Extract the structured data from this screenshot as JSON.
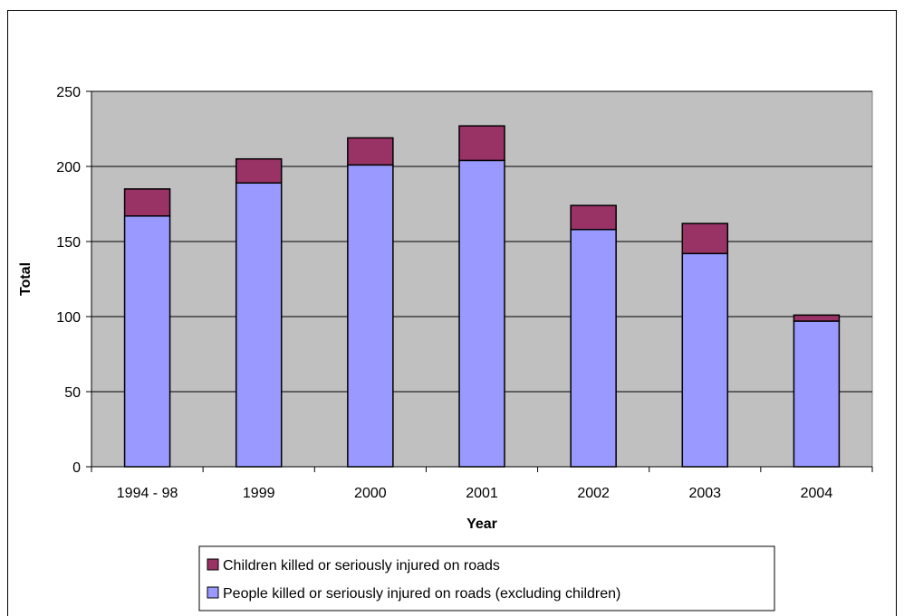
{
  "chart_data": {
    "type": "bar",
    "stacked": true,
    "categories": [
      "1994 - 98",
      "1999",
      "2000",
      "2001",
      "2002",
      "2003",
      "2004"
    ],
    "series": [
      {
        "name": "People killed or seriously injured on roads (excluding children)",
        "values": [
          167,
          189,
          201,
          204,
          158,
          142,
          97
        ],
        "color": "#9999ff"
      },
      {
        "name": "Children killed or seriously injured on roads",
        "values": [
          18,
          16,
          18,
          23,
          16,
          20,
          4
        ],
        "color": "#993366"
      }
    ],
    "title": "",
    "xlabel": "Year",
    "ylabel": "Total",
    "ylim": [
      0,
      250
    ],
    "yticks": [
      0,
      50,
      100,
      150,
      200,
      250
    ],
    "grid": true,
    "plot_background": "#c0c0c0",
    "legend_position": "bottom"
  }
}
